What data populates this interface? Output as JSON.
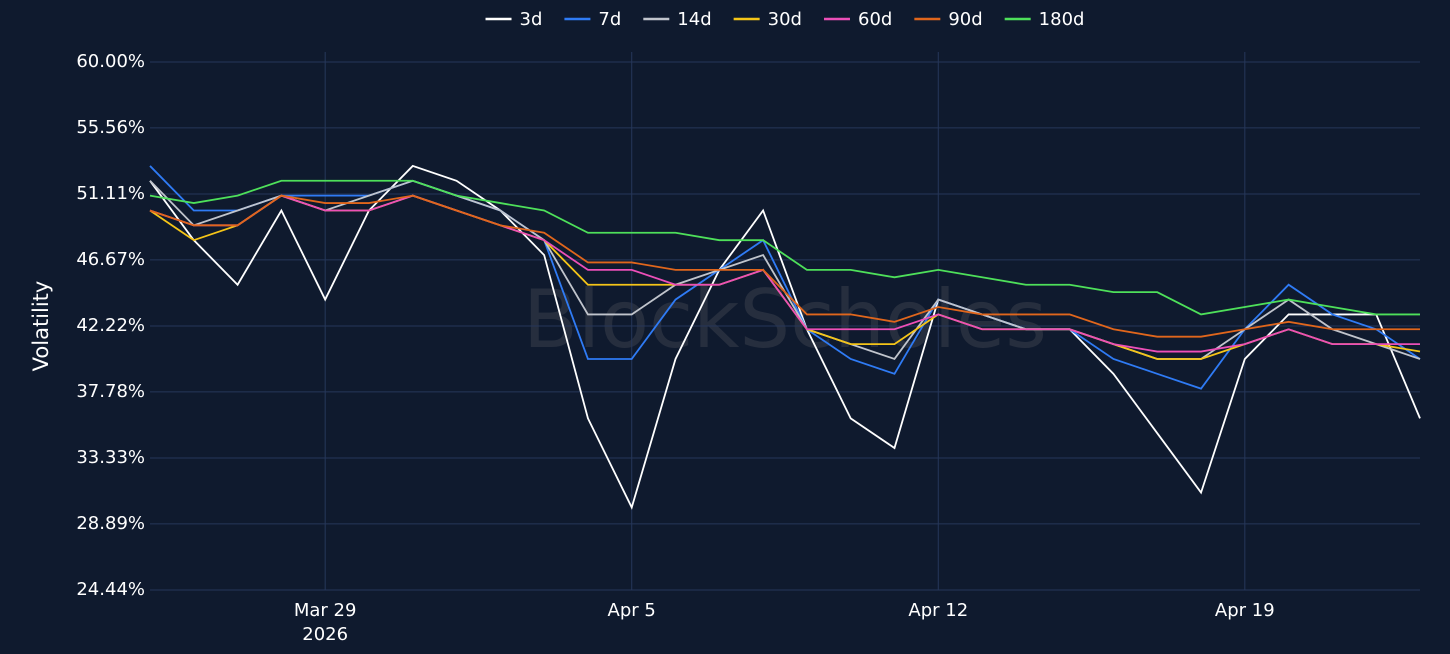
{
  "chart_data": {
    "type": "line",
    "watermark": "BlockScholes",
    "ylabel": "Volatility",
    "x": [
      "2026-03-25",
      "2026-03-26",
      "2026-03-27",
      "2026-03-28",
      "2026-03-29",
      "2026-03-30",
      "2026-03-31",
      "2026-04-01",
      "2026-04-02",
      "2026-04-03",
      "2026-04-04",
      "2026-04-05",
      "2026-04-06",
      "2026-04-07",
      "2026-04-08",
      "2026-04-09",
      "2026-04-10",
      "2026-04-11",
      "2026-04-12",
      "2026-04-13",
      "2026-04-14",
      "2026-04-15",
      "2026-04-16",
      "2026-04-17",
      "2026-04-18",
      "2026-04-19",
      "2026-04-20",
      "2026-04-21",
      "2026-04-22",
      "2026-04-23"
    ],
    "xlim": [
      "2026-03-25",
      "2026-04-23"
    ],
    "xticks": [
      {
        "value": "2026-03-29",
        "label": "Mar 29\n2026"
      },
      {
        "value": "2026-04-05",
        "label": "Apr 5"
      },
      {
        "value": "2026-04-12",
        "label": "Apr 12"
      },
      {
        "value": "2026-04-19",
        "label": "Apr 19"
      }
    ],
    "ylim": [
      24.44,
      60
    ],
    "yticks": [
      {
        "value": 24.44,
        "label": "24.44%"
      },
      {
        "value": 28.89,
        "label": "28.89%"
      },
      {
        "value": 33.33,
        "label": "33.33%"
      },
      {
        "value": 37.78,
        "label": "37.78%"
      },
      {
        "value": 42.22,
        "label": "42.22%"
      },
      {
        "value": 46.67,
        "label": "46.67%"
      },
      {
        "value": 51.11,
        "label": "51.11%"
      },
      {
        "value": 55.56,
        "label": "55.56%"
      },
      {
        "value": 60,
        "label": "60.00%"
      }
    ],
    "grid": true,
    "legend": "top",
    "series": [
      {
        "name": "3d",
        "color": "#ffffff",
        "values": [
          52,
          48,
          45,
          50,
          44,
          50,
          53,
          52,
          50,
          47,
          36,
          30,
          40,
          46,
          50,
          42,
          36,
          34,
          44,
          43,
          42,
          42,
          39,
          35,
          31,
          40,
          43,
          43,
          43,
          36
        ]
      },
      {
        "name": "7d",
        "color": "#2f7bf5",
        "values": [
          53,
          50,
          50,
          51,
          51,
          51,
          52,
          51,
          50,
          48,
          40,
          40,
          44,
          46,
          48,
          42,
          40,
          39,
          44,
          43,
          42,
          42,
          40,
          39,
          38,
          42,
          45,
          43,
          42,
          40
        ]
      },
      {
        "name": "14d",
        "color": "#c0c4cc",
        "values": [
          52,
          49,
          50,
          51,
          50,
          51,
          52,
          51,
          50,
          48,
          43,
          43,
          45,
          46,
          47,
          42,
          41,
          40,
          44,
          43,
          42,
          42,
          41,
          40,
          40,
          42,
          44,
          42,
          41,
          40
        ]
      },
      {
        "name": "30d",
        "color": "#f5c518",
        "values": [
          50,
          48,
          49,
          51,
          50,
          50,
          51,
          50,
          49,
          48,
          45,
          45,
          45,
          45,
          46,
          42,
          41,
          41,
          43,
          42,
          42,
          42,
          41,
          40,
          40,
          41,
          42,
          41,
          41,
          40.5
        ]
      },
      {
        "name": "60d",
        "color": "#ec4fb8",
        "values": [
          50,
          49,
          49,
          51,
          50,
          50,
          51,
          50,
          49,
          48,
          46,
          46,
          45,
          45,
          46,
          42,
          42,
          42,
          43,
          42,
          42,
          42,
          41,
          40.5,
          40.5,
          41,
          42,
          41,
          41,
          41
        ]
      },
      {
        "name": "90d",
        "color": "#e0661c",
        "values": [
          50,
          49,
          49,
          51,
          50.5,
          50.5,
          51,
          50,
          49,
          48.5,
          46.5,
          46.5,
          46,
          46,
          46,
          43,
          43,
          42.5,
          43.5,
          43,
          43,
          43,
          42,
          41.5,
          41.5,
          42,
          42.5,
          42,
          42,
          42
        ]
      },
      {
        "name": "180d",
        "color": "#4ee05a",
        "values": [
          51,
          50.5,
          51,
          52,
          52,
          52,
          52,
          51,
          50.5,
          50,
          48.5,
          48.5,
          48.5,
          48,
          48,
          46,
          46,
          45.5,
          46,
          45.5,
          45,
          45,
          44.5,
          44.5,
          43,
          43.5,
          44,
          43.5,
          43,
          43
        ]
      }
    ]
  }
}
